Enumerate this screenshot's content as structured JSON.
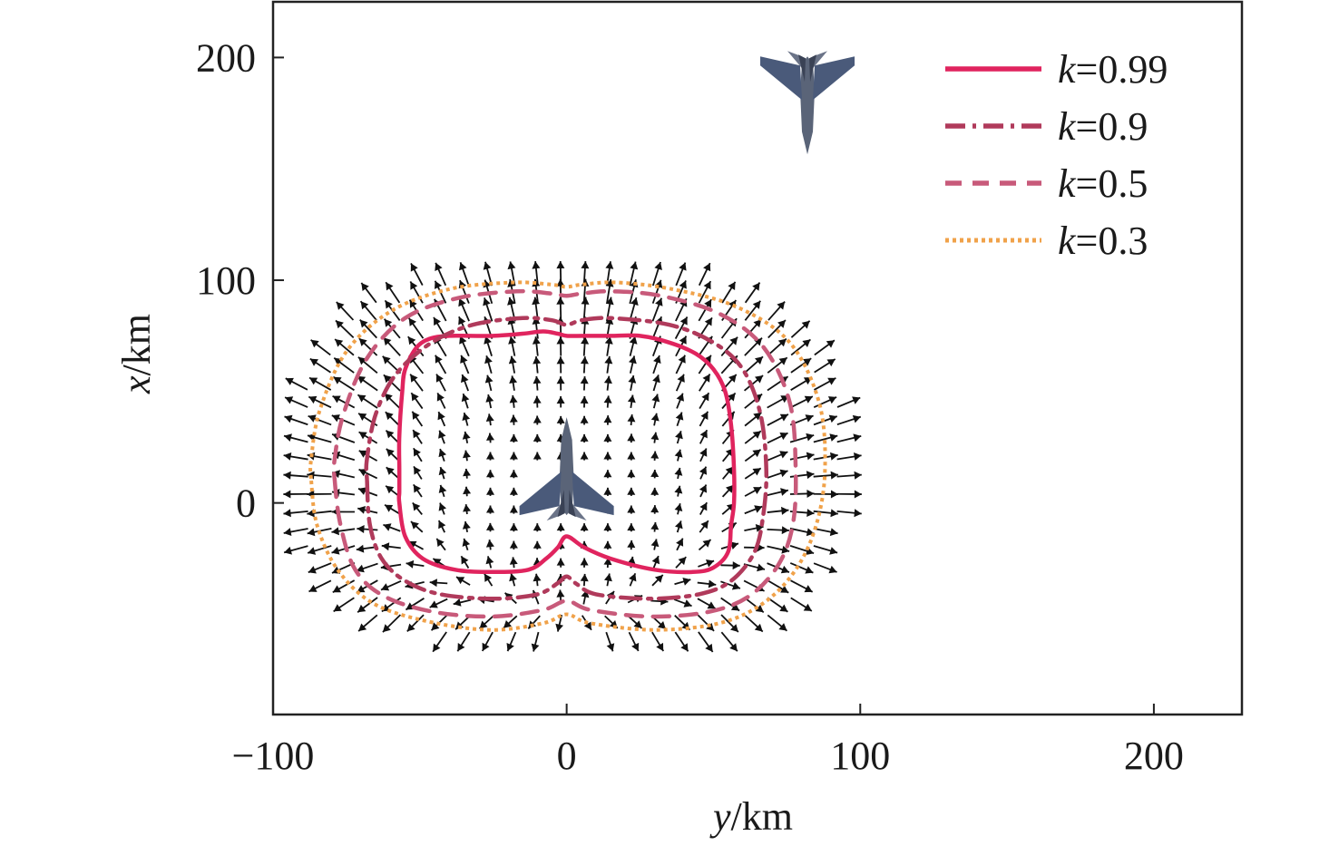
{
  "chart_data": {
    "type": "line",
    "xlabel_var": "y",
    "xlabel_unit": "/km",
    "ylabel_var": "x",
    "ylabel_unit": "/km",
    "xlim": [
      -100,
      230
    ],
    "ylim": [
      -95,
      225
    ],
    "xticks": [
      {
        "value": -100,
        "label": "−100"
      },
      {
        "value": 0,
        "label": "0"
      },
      {
        "value": 100,
        "label": "100"
      },
      {
        "value": 200,
        "label": "200"
      }
    ],
    "yticks": [
      {
        "value": 0,
        "label": "0"
      },
      {
        "value": 100,
        "label": "100"
      },
      {
        "value": 200,
        "label": "200"
      }
    ],
    "legend_position": "top-right",
    "series": [
      {
        "name_var": "k",
        "name_value": "=0.99",
        "style": "solid",
        "color": "#e0245e",
        "y": [
          5,
          0,
          -15,
          -25,
          -30,
          -31,
          -30,
          -25,
          -20,
          -15,
          -20,
          -25,
          -30,
          -31,
          -29,
          -22,
          -10,
          0,
          15,
          35,
          50,
          60,
          67,
          72,
          75,
          75,
          75,
          75,
          76,
          77,
          76,
          75,
          75,
          75,
          74,
          70,
          60,
          50,
          30,
          15,
          5
        ],
        "x": [
          -57,
          -57,
          -55,
          -49,
          -38,
          -25,
          -13,
          -7,
          -3,
          0,
          6,
          15,
          30,
          43,
          50,
          55,
          56,
          57,
          57,
          56,
          54,
          50,
          44,
          35,
          25,
          15,
          6,
          0,
          -3,
          -8,
          -15,
          -25,
          -33,
          -40,
          -46,
          -51,
          -55,
          -56,
          -57,
          -57,
          -57
        ]
      },
      {
        "name_var": "k",
        "name_value": "=0.9",
        "style": "dashdot",
        "color": "#b03a5b",
        "y": [
          10,
          -10,
          -25,
          -35,
          -41,
          -43,
          -41,
          -36,
          -33,
          -36,
          -41,
          -43,
          -41,
          -35,
          -22,
          -5,
          15,
          40,
          60,
          72,
          80,
          83,
          82,
          80,
          82,
          83,
          80,
          72,
          58,
          40,
          20,
          10
        ],
        "x": [
          -68,
          -67,
          -63,
          -55,
          -43,
          -25,
          -10,
          -3,
          0,
          3,
          10,
          28,
          45,
          56,
          64,
          67,
          68,
          66,
          60,
          50,
          35,
          15,
          5,
          0,
          -5,
          -15,
          -32,
          -46,
          -58,
          -65,
          -68,
          -68
        ]
      },
      {
        "name_var": "k",
        "name_value": "=0.5",
        "style": "dashed",
        "color": "#c85a7a",
        "y": [
          10,
          -10,
          -30,
          -42,
          -49,
          -51,
          -48,
          -44,
          -48,
          -51,
          -49,
          -42,
          -28,
          -10,
          15,
          45,
          70,
          85,
          93,
          95,
          94,
          93,
          94,
          95,
          92,
          83,
          65,
          40,
          20,
          10
        ],
        "x": [
          -79,
          -77,
          -72,
          -62,
          -45,
          -25,
          -8,
          0,
          8,
          28,
          48,
          62,
          72,
          77,
          78,
          76,
          67,
          52,
          32,
          15,
          5,
          0,
          -5,
          -17,
          -37,
          -55,
          -68,
          -76,
          -79,
          -79
        ]
      },
      {
        "name_var": "k",
        "name_value": "=0.3",
        "style": "dotted",
        "color": "#f0a24a",
        "y": [
          10,
          -10,
          -30,
          -45,
          -53,
          -57,
          -54,
          -50,
          -54,
          -57,
          -54,
          -45,
          -30,
          -10,
          15,
          45,
          72,
          88,
          96,
          99,
          98,
          97,
          98,
          99,
          96,
          86,
          68,
          42,
          20,
          10
        ],
        "x": [
          -87,
          -85,
          -78,
          -66,
          -48,
          -26,
          -8,
          0,
          8,
          30,
          52,
          67,
          78,
          85,
          88,
          86,
          76,
          58,
          36,
          17,
          5,
          0,
          -5,
          -18,
          -40,
          -60,
          -75,
          -84,
          -87,
          -87
        ]
      }
    ],
    "quiver": {
      "color": "#111111",
      "grid_x_from": -90,
      "grid_x_to": 95,
      "grid_x_step": 8,
      "grid_y_from": -60,
      "grid_y_to": 110,
      "grid_y_step": 8,
      "domain_outer_radius_scale": 1.1
    },
    "aircraft": [
      {
        "kind": "interceptor",
        "y": 0,
        "x": 10,
        "heading": "up",
        "color": "#4a5a7a"
      },
      {
        "kind": "target",
        "y": 82,
        "x": 185,
        "heading": "down",
        "color": "#4a5a7a"
      }
    ]
  }
}
